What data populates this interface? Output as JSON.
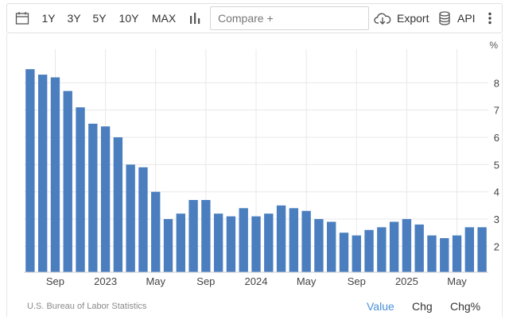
{
  "toolbar": {
    "ranges": [
      {
        "label": "1Y",
        "active": false
      },
      {
        "label": "3Y",
        "active": true
      },
      {
        "label": "5Y",
        "active": false
      },
      {
        "label": "10Y",
        "active": false
      },
      {
        "label": "MAX",
        "active": false
      }
    ],
    "compare_placeholder": "Compare +",
    "export_label": "Export",
    "api_label": "API",
    "icons": [
      "calendar-icon",
      "bar-chart-icon",
      "cloud-download-icon",
      "database-icon",
      "more-vertical-icon"
    ]
  },
  "colors": {
    "bar": "#4a7ebf",
    "accent": "#4a90d9",
    "grid": "#e8e8e8"
  },
  "source": "U.S. Bureau of Labor Statistics",
  "view_tabs": [
    {
      "label": "Value",
      "active": true
    },
    {
      "label": "Chg",
      "active": false
    },
    {
      "label": "Chg%",
      "active": false
    }
  ],
  "chart_data": {
    "type": "bar",
    "unit": "%",
    "categories": [
      "2022-07",
      "2022-08",
      "2022-09",
      "2022-10",
      "2022-11",
      "2022-12",
      "2023-01",
      "2023-02",
      "2023-03",
      "2023-04",
      "2023-05",
      "2023-06",
      "2023-07",
      "2023-08",
      "2023-09",
      "2023-10",
      "2023-11",
      "2023-12",
      "2024-01",
      "2024-02",
      "2024-03",
      "2024-04",
      "2024-05",
      "2024-06",
      "2024-07",
      "2024-08",
      "2024-09",
      "2024-10",
      "2024-11",
      "2024-12",
      "2025-01",
      "2025-02",
      "2025-03",
      "2025-04",
      "2025-05",
      "2025-06",
      "2025-07"
    ],
    "values": [
      8.5,
      8.3,
      8.2,
      7.7,
      7.1,
      6.5,
      6.4,
      6.0,
      5.0,
      4.9,
      4.0,
      3.0,
      3.2,
      3.7,
      3.7,
      3.2,
      3.1,
      3.4,
      3.1,
      3.2,
      3.5,
      3.4,
      3.3,
      3.0,
      2.9,
      2.5,
      2.4,
      2.6,
      2.7,
      2.9,
      3.0,
      2.8,
      2.4,
      2.3,
      2.4,
      2.7,
      2.7
    ],
    "x_tick_labels": [
      {
        "index": 2,
        "label": "Sep"
      },
      {
        "index": 6,
        "label": "2023"
      },
      {
        "index": 10,
        "label": "May"
      },
      {
        "index": 14,
        "label": "Sep"
      },
      {
        "index": 18,
        "label": "2024"
      },
      {
        "index": 22,
        "label": "May"
      },
      {
        "index": 26,
        "label": "Sep"
      },
      {
        "index": 30,
        "label": "2025"
      },
      {
        "index": 34,
        "label": "May"
      }
    ],
    "y_ticks": [
      2,
      3,
      4,
      5,
      6,
      7,
      8
    ],
    "ylim": [
      1.05,
      9.0
    ],
    "y_axis_side": "right",
    "grid": true,
    "legend": "none"
  }
}
